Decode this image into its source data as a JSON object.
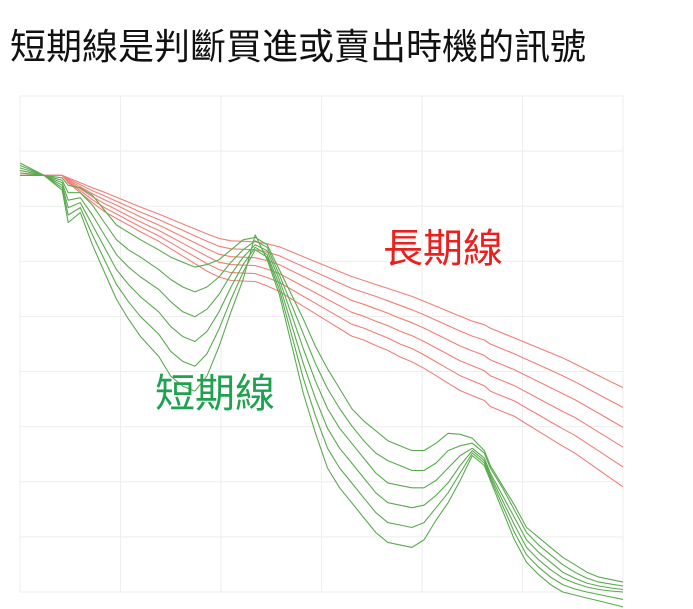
{
  "title": "短期線是判斷買進或賣出時機的訊號",
  "colors": {
    "long": "#f07f78",
    "short": "#5aaa4f",
    "long_label": "#e8211e",
    "short_label": "#1ea24f",
    "grid": "#eeeeee"
  },
  "chart_data": {
    "type": "line",
    "title": "短期線是判斷買進或賣出時機的訊號",
    "xlabel": "",
    "ylabel": "",
    "xlim": [
      0,
      100
    ],
    "ylim": [
      0,
      100
    ],
    "grid": true,
    "annotations": [
      {
        "text": "長期線",
        "color": "red"
      },
      {
        "text": "短期線",
        "color": "green"
      }
    ],
    "x": [
      0,
      4,
      7,
      8,
      10,
      12,
      14,
      16,
      18,
      20,
      23,
      25,
      27,
      29,
      31,
      33,
      35,
      37,
      39,
      41,
      43,
      45,
      47,
      49,
      51,
      53,
      55,
      57,
      59,
      61,
      63,
      65,
      67,
      69,
      71,
      73,
      75,
      77,
      78,
      80,
      82,
      84,
      86,
      88,
      90,
      92,
      94,
      96,
      98,
      100
    ],
    "series": [
      {
        "name": "",
        "group": "long",
        "values": [
          84.0,
          84.0,
          84.0,
          83.5,
          82.5,
          81.5,
          80.6,
          79.6,
          78.6,
          77.6,
          76.2,
          75.2,
          74.2,
          73.2,
          72.2,
          71.3,
          70.8,
          70.7,
          70.6,
          70.2,
          69.6,
          68.6,
          67.6,
          66.6,
          65.6,
          64.6,
          63.6,
          62.8,
          62.0,
          61.2,
          60.4,
          59.6,
          58.6,
          57.6,
          56.6,
          55.6,
          54.6,
          53.9,
          53.2,
          52.2,
          51.2,
          50.2,
          49.2,
          48.2,
          47.2,
          46.0,
          44.8,
          43.6,
          42.4,
          41.2
        ]
      },
      {
        "name": "",
        "group": "long",
        "values": [
          84.0,
          84.0,
          84.0,
          83.3,
          82.1,
          80.9,
          79.9,
          78.8,
          77.7,
          76.6,
          75.1,
          74.0,
          72.9,
          71.8,
          70.7,
          69.7,
          69.2,
          69.1,
          69.0,
          68.5,
          67.8,
          66.7,
          65.6,
          64.5,
          63.4,
          62.3,
          61.2,
          60.4,
          59.6,
          58.7,
          57.8,
          56.9,
          55.9,
          54.8,
          53.7,
          52.6,
          51.6,
          50.8,
          50.0,
          49.0,
          48.0,
          46.9,
          45.8,
          44.7,
          43.6,
          42.4,
          41.1,
          39.8,
          38.5,
          37.2
        ]
      },
      {
        "name": "",
        "group": "long",
        "values": [
          84.0,
          84.0,
          84.0,
          83.1,
          81.7,
          80.3,
          79.1,
          78.0,
          76.8,
          75.6,
          74.0,
          72.8,
          71.6,
          70.4,
          69.2,
          68.1,
          67.6,
          67.5,
          67.4,
          66.8,
          66.0,
          64.8,
          63.6,
          62.4,
          61.2,
          60.0,
          58.8,
          58.0,
          57.1,
          56.2,
          55.2,
          54.3,
          53.2,
          52.0,
          50.8,
          49.6,
          48.6,
          47.7,
          46.8,
          45.8,
          44.8,
          43.6,
          42.4,
          41.2,
          40.0,
          38.8,
          37.4,
          36.0,
          34.6,
          33.2
        ]
      },
      {
        "name": "",
        "group": "long",
        "values": [
          84.0,
          84.0,
          84.0,
          82.9,
          81.3,
          79.7,
          78.3,
          77.1,
          75.8,
          74.6,
          72.9,
          71.6,
          70.3,
          69.0,
          67.7,
          66.5,
          66.0,
          65.9,
          65.8,
          65.1,
          64.2,
          62.9,
          61.6,
          60.3,
          59.0,
          57.7,
          56.4,
          55.6,
          54.6,
          53.7,
          52.6,
          51.7,
          50.5,
          49.2,
          47.9,
          46.6,
          45.6,
          44.6,
          43.6,
          42.6,
          41.6,
          40.3,
          39.0,
          37.7,
          36.4,
          35.2,
          33.7,
          32.2,
          30.7,
          29.2
        ]
      },
      {
        "name": "",
        "group": "long",
        "values": [
          84.0,
          84.0,
          84.0,
          82.7,
          80.9,
          79.1,
          77.5,
          76.2,
          74.9,
          73.6,
          71.8,
          70.4,
          69.0,
          67.6,
          66.2,
          65.0,
          64.4,
          64.3,
          64.2,
          63.4,
          62.4,
          61.0,
          59.6,
          58.2,
          56.8,
          55.4,
          54.0,
          53.2,
          52.2,
          51.2,
          50.0,
          49.1,
          47.8,
          46.4,
          45.0,
          43.6,
          42.6,
          41.6,
          40.5,
          39.5,
          38.5,
          37.1,
          35.7,
          34.3,
          32.9,
          31.6,
          30.0,
          28.4,
          26.8,
          25.2
        ]
      },
      {
        "name": "",
        "group": "long",
        "values": [
          84.0,
          84.0,
          84.0,
          82.5,
          80.5,
          78.5,
          76.7,
          75.3,
          74.0,
          72.6,
          70.7,
          69.2,
          67.7,
          66.2,
          64.7,
          63.5,
          62.8,
          62.7,
          62.6,
          61.7,
          60.6,
          59.1,
          57.6,
          56.1,
          54.6,
          53.1,
          51.6,
          50.8,
          49.7,
          48.7,
          47.4,
          46.4,
          45.1,
          43.6,
          42.1,
          40.6,
          39.6,
          38.6,
          37.4,
          36.4,
          35.4,
          33.9,
          32.4,
          30.9,
          29.4,
          28.0,
          26.3,
          24.6,
          22.9,
          21.2
        ]
      },
      {
        "name": "",
        "group": "short",
        "values": [
          84.0,
          84.0,
          83.5,
          82.0,
          81.5,
          80.0,
          77.0,
          74.0,
          72.5,
          71.0,
          69.0,
          67.5,
          66.5,
          65.5,
          66.0,
          67.0,
          69.0,
          71.0,
          71.5,
          70.0,
          65.0,
          60.0,
          55.0,
          49.5,
          45.0,
          41.0,
          37.0,
          34.5,
          32.5,
          30.5,
          29.5,
          28.5,
          28.5,
          30.0,
          32.0,
          31.8,
          31.0,
          28.5,
          25.5,
          21.5,
          17.5,
          13.0,
          11.0,
          9.0,
          7.0,
          5.5,
          4.0,
          3.0,
          2.5,
          2.0
        ]
      },
      {
        "name": "",
        "group": "short",
        "values": [
          84.5,
          84.0,
          83.0,
          80.5,
          80.5,
          78.0,
          74.5,
          71.0,
          69.0,
          67.5,
          65.0,
          63.0,
          61.5,
          60.5,
          61.5,
          63.5,
          66.5,
          69.0,
          70.8,
          69.5,
          64.0,
          58.0,
          52.0,
          46.0,
          41.0,
          37.0,
          33.5,
          30.5,
          28.0,
          26.5,
          25.5,
          24.5,
          24.5,
          26.0,
          28.5,
          29.5,
          30.0,
          28.0,
          25.0,
          21.0,
          16.5,
          12.0,
          9.5,
          7.5,
          5.5,
          4.0,
          2.8,
          2.0,
          1.6,
          1.2
        ]
      },
      {
        "name": "",
        "group": "short",
        "values": [
          85.0,
          84.0,
          82.5,
          79.0,
          79.5,
          76.0,
          72.0,
          68.0,
          65.5,
          63.5,
          61.0,
          58.5,
          56.5,
          55.5,
          57.0,
          60.0,
          64.0,
          67.5,
          70.0,
          68.8,
          63.0,
          56.0,
          49.0,
          42.5,
          37.0,
          33.0,
          30.0,
          27.0,
          24.0,
          22.0,
          21.5,
          21.0,
          21.0,
          22.5,
          25.0,
          27.5,
          29.0,
          27.0,
          24.0,
          19.5,
          15.0,
          10.5,
          8.0,
          6.0,
          4.0,
          2.8,
          1.8,
          1.2,
          0.8,
          0.5
        ]
      },
      {
        "name": "",
        "group": "short",
        "values": [
          85.5,
          84.0,
          82.0,
          77.5,
          78.5,
          74.0,
          69.5,
          65.0,
          62.0,
          59.5,
          56.5,
          53.5,
          51.5,
          50.5,
          52.5,
          56.5,
          61.5,
          66.0,
          69.5,
          68.0,
          62.0,
          54.0,
          46.0,
          39.0,
          33.0,
          29.0,
          26.0,
          23.0,
          20.0,
          18.0,
          17.5,
          17.0,
          17.5,
          19.5,
          22.0,
          25.5,
          28.5,
          26.5,
          23.5,
          18.5,
          13.5,
          9.0,
          6.5,
          4.5,
          2.8,
          1.8,
          1.0,
          0.5,
          0.2,
          0.0
        ]
      },
      {
        "name": "",
        "group": "short",
        "values": [
          86.0,
          84.0,
          81.5,
          76.0,
          77.5,
          72.0,
          67.0,
          62.0,
          58.5,
          55.5,
          52.0,
          48.5,
          46.5,
          45.5,
          48.0,
          53.0,
          59.0,
          64.5,
          69.0,
          67.5,
          61.0,
          52.0,
          43.0,
          35.5,
          29.0,
          25.0,
          22.0,
          19.0,
          16.0,
          14.0,
          13.5,
          13.0,
          14.0,
          17.0,
          20.0,
          24.0,
          28.0,
          26.0,
          23.0,
          17.5,
          12.0,
          7.5,
          5.0,
          3.0,
          1.5,
          0.6,
          0.0,
          -0.5,
          -1.0,
          -1.5
        ]
      },
      {
        "name": "",
        "group": "short",
        "values": [
          86.5,
          84.0,
          81.0,
          74.5,
          76.5,
          70.0,
          64.5,
          59.0,
          55.0,
          51.5,
          47.5,
          43.5,
          41.5,
          40.5,
          43.5,
          49.5,
          56.5,
          63.0,
          72.0,
          67.0,
          60.0,
          50.0,
          40.0,
          32.0,
          25.0,
          21.0,
          18.0,
          15.0,
          12.0,
          10.0,
          9.5,
          9.0,
          10.5,
          14.5,
          18.0,
          22.5,
          27.5,
          25.5,
          22.5,
          16.5,
          10.5,
          6.0,
          3.5,
          1.5,
          0.0,
          -0.6,
          -1.2,
          -1.8,
          -2.4,
          -3.0
        ]
      }
    ]
  }
}
